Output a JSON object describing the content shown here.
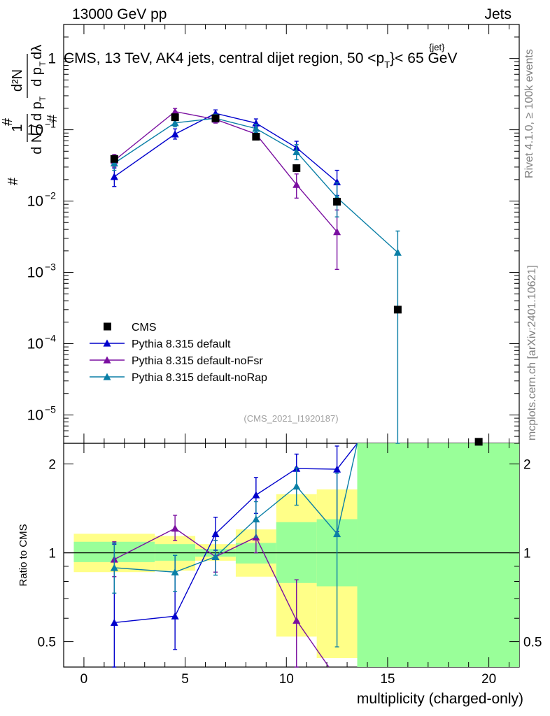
{
  "header": {
    "left": "13000 GeV pp",
    "right": "Jets",
    "title": "CMS, 13 TeV, AK4 jets, central dijet region, 50 <p",
    "title_sub": "T",
    "title_sup": "{jet}",
    "title_end": "}< 65 GeV"
  },
  "side": {
    "rivet": "Rivet 4.1.0, ≥ 100k events",
    "mcplots": "mcplots.cern.ch [arXiv:2401.10621]"
  },
  "analysis_tag": "(CMS_2021_I1920187)",
  "ylabel_main": "1/N dN/dp_T dλ",
  "ylabel_ratio": "Ratio to CMS",
  "xlabel": "multiplicity (charged-only)",
  "colors": {
    "cms": "#000000",
    "default": "#0000cc",
    "noFsr": "#7a0fa0",
    "noRap": "#0a7fa6",
    "band_yellow": "#ffff88",
    "band_green": "#99ff99"
  },
  "legend": [
    {
      "label": "CMS",
      "marker": "square"
    },
    {
      "label": "Pythia 8.315 default",
      "marker": "triangle"
    },
    {
      "label": "Pythia 8.315 default-noFsr",
      "marker": "triangle"
    },
    {
      "label": "Pythia 8.315 default-noRap",
      "marker": "triangle"
    }
  ],
  "chart_data": [
    {
      "type": "scatter",
      "panel": "main",
      "yscale": "log",
      "xlim": [
        -1,
        21.5
      ],
      "ylim": [
        4e-06,
        3
      ],
      "yticks": [
        {
          "v": 1,
          "label": "1"
        },
        {
          "v": 0.1,
          "label": "10",
          "exp": "−1"
        },
        {
          "v": 0.01,
          "label": "10",
          "exp": "−2"
        },
        {
          "v": 0.001,
          "label": "10",
          "exp": "−3"
        },
        {
          "v": 0.0001,
          "label": "10",
          "exp": "−4"
        },
        {
          "v": 1e-05,
          "label": "10",
          "exp": "−5"
        }
      ],
      "cms": {
        "name": "CMS",
        "points": [
          {
            "x": 1.5,
            "y": 0.039
          },
          {
            "x": 4.5,
            "y": 0.15
          },
          {
            "x": 6.5,
            "y": 0.145
          },
          {
            "x": 8.5,
            "y": 0.08
          },
          {
            "x": 10.5,
            "y": 0.029
          },
          {
            "x": 12.5,
            "y": 0.0098
          },
          {
            "x": 15.5,
            "y": 0.0003
          },
          {
            "x": 19.5,
            "y": 4.2e-06
          }
        ]
      },
      "series": [
        {
          "name": "Pythia 8.315 default",
          "key": "default",
          "points": [
            {
              "x": 1.5,
              "y": 0.022,
              "lo": 0.016,
              "hi": 0.029
            },
            {
              "x": 4.5,
              "y": 0.087,
              "lo": 0.074,
              "hi": 0.103
            },
            {
              "x": 6.5,
              "y": 0.17,
              "lo": 0.153,
              "hi": 0.19
            },
            {
              "x": 8.5,
              "y": 0.124,
              "lo": 0.109,
              "hi": 0.142
            },
            {
              "x": 10.5,
              "y": 0.056,
              "lo": 0.045,
              "hi": 0.069
            },
            {
              "x": 12.5,
              "y": 0.0185,
              "lo": 0.012,
              "hi": 0.027
            }
          ]
        },
        {
          "name": "Pythia 8.315 default-noFsr",
          "key": "noFsr",
          "points": [
            {
              "x": 1.5,
              "y": 0.037,
              "lo": 0.03,
              "hi": 0.045
            },
            {
              "x": 4.5,
              "y": 0.18,
              "lo": 0.162,
              "hi": 0.199
            },
            {
              "x": 6.5,
              "y": 0.14,
              "lo": 0.124,
              "hi": 0.158
            },
            {
              "x": 8.5,
              "y": 0.087,
              "lo": 0.076,
              "hi": 0.101
            },
            {
              "x": 10.5,
              "y": 0.017,
              "lo": 0.011,
              "hi": 0.024
            },
            {
              "x": 12.5,
              "y": 0.0037,
              "lo": 0.0011,
              "hi": 0.0075
            }
          ]
        },
        {
          "name": "Pythia 8.315 default-noRap",
          "key": "noRap",
          "points": [
            {
              "x": 1.5,
              "y": 0.034,
              "lo": 0.027,
              "hi": 0.042
            },
            {
              "x": 4.5,
              "y": 0.125,
              "lo": 0.11,
              "hi": 0.14
            },
            {
              "x": 6.5,
              "y": 0.145,
              "lo": 0.13,
              "hi": 0.165
            },
            {
              "x": 8.5,
              "y": 0.104,
              "lo": 0.091,
              "hi": 0.119
            },
            {
              "x": 10.5,
              "y": 0.049,
              "lo": 0.038,
              "hi": 0.062
            },
            {
              "x": 12.5,
              "y": 0.0112,
              "lo": 0.006,
              "hi": 0.018
            },
            {
              "x": 15.5,
              "y": 0.0019,
              "lo": 4e-06,
              "hi": 0.0038
            }
          ]
        }
      ]
    },
    {
      "type": "scatter",
      "panel": "ratio",
      "title": "Ratio to CMS",
      "xlabel": "multiplicity (charged-only)",
      "yscale": "log",
      "xlim": [
        -1,
        21.5
      ],
      "ylim": [
        0.41,
        2.35
      ],
      "xticks": [
        0,
        5,
        10,
        15,
        20
      ],
      "yticks": [
        0.5,
        1,
        2
      ],
      "bands": [
        {
          "x0": -0.5,
          "x1": 3.5,
          "y_lo": 0.86,
          "y_hi": 1.16,
          "g_lo": 0.93,
          "g_hi": 1.09
        },
        {
          "x0": 3.5,
          "x1": 5.5,
          "y_lo": 0.87,
          "y_hi": 1.14,
          "g_lo": 0.94,
          "g_hi": 1.07
        },
        {
          "x0": 5.5,
          "x1": 7.5,
          "y_lo": 0.94,
          "y_hi": 1.07,
          "g_lo": 0.97,
          "g_hi": 1.03
        },
        {
          "x0": 7.5,
          "x1": 9.5,
          "y_lo": 0.83,
          "y_hi": 1.2,
          "g_lo": 0.92,
          "g_hi": 1.08
        },
        {
          "x0": 9.5,
          "x1": 11.5,
          "y_lo": 0.52,
          "y_hi": 1.58,
          "g_lo": 0.79,
          "g_hi": 1.27
        },
        {
          "x0": 11.5,
          "x1": 13.5,
          "y_lo": 0.44,
          "y_hi": 1.64,
          "g_lo": 0.77,
          "g_hi": 1.3
        },
        {
          "x0": 13.5,
          "x1": 21.5,
          "y_lo": 0.41,
          "y_hi": 2.35,
          "g_lo": 0.41,
          "g_hi": 2.35
        }
      ],
      "series": [
        {
          "name": "Pythia 8.315 default",
          "key": "default",
          "points": [
            {
              "x": 1.5,
              "y": 0.58,
              "lo": 0.37,
              "hi": 1.07
            },
            {
              "x": 4.5,
              "y": 0.61,
              "lo": 0.47,
              "hi": 0.98
            },
            {
              "x": 6.5,
              "y": 1.16,
              "lo": 1.02,
              "hi": 1.32
            },
            {
              "x": 8.5,
              "y": 1.57,
              "lo": 1.36,
              "hi": 1.8
            },
            {
              "x": 10.5,
              "y": 1.93,
              "lo": 1.66,
              "hi": 2.16
            },
            {
              "x": 12.5,
              "y": 1.92,
              "lo": 1.18,
              "hi": 2.3
            }
          ],
          "exit": {
            "x": 13.5,
            "y": 2.35
          }
        },
        {
          "name": "Pythia 8.315 default-noFsr",
          "key": "noFsr",
          "points": [
            {
              "x": 1.5,
              "y": 0.95,
              "lo": 0.83,
              "hi": 1.09
            },
            {
              "x": 4.5,
              "y": 1.21,
              "lo": 1.1,
              "hi": 1.34
            },
            {
              "x": 6.5,
              "y": 0.97,
              "lo": 0.86,
              "hi": 1.1
            },
            {
              "x": 8.5,
              "y": 1.13,
              "lo": 1.0,
              "hi": 1.28
            },
            {
              "x": 10.5,
              "y": 0.59,
              "lo": 0.41,
              "hi": 0.81
            }
          ],
          "exit": {
            "x": 12.1,
            "y": 0.41
          }
        },
        {
          "name": "Pythia 8.315 default-noRap",
          "key": "noRap",
          "points": [
            {
              "x": 1.5,
              "y": 0.89,
              "lo": 0.73,
              "hi": 1.08
            },
            {
              "x": 4.5,
              "y": 0.86,
              "lo": 0.74,
              "hi": 0.98
            },
            {
              "x": 6.5,
              "y": 0.97,
              "lo": 0.84,
              "hi": 1.1
            },
            {
              "x": 8.5,
              "y": 1.3,
              "lo": 1.13,
              "hi": 1.49
            },
            {
              "x": 10.5,
              "y": 1.68,
              "lo": 1.45,
              "hi": 1.94
            },
            {
              "x": 12.5,
              "y": 1.16,
              "lo": 0.48,
              "hi": 1.86
            }
          ],
          "exit": {
            "x": 13.5,
            "y": 2.35
          }
        }
      ]
    }
  ]
}
